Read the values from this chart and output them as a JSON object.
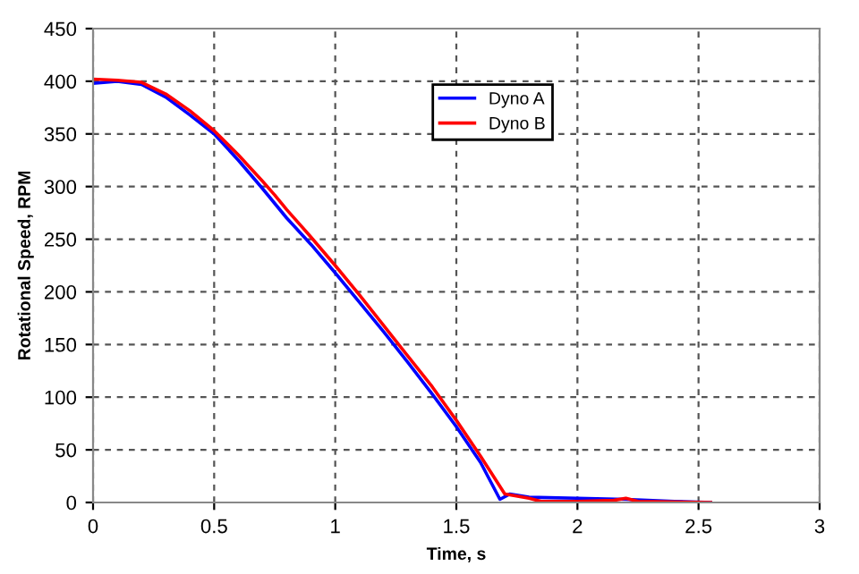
{
  "chart_data": {
    "type": "line",
    "xlabel": "Time, s",
    "ylabel": "Rotational Speed, RPM",
    "xlim": [
      0,
      3
    ],
    "xticks": [
      0,
      0.5,
      1,
      1.5,
      2,
      2.5,
      3
    ],
    "ylim": [
      0,
      450
    ],
    "yticks": [
      0,
      50,
      100,
      150,
      200,
      250,
      300,
      350,
      400,
      450
    ],
    "grid": true,
    "legend": "top",
    "marker": "none",
    "line_style": "solid",
    "series": [
      {
        "name": "Dyno A",
        "color": "#0000ff",
        "x": [
          0,
          0.1,
          0.2,
          0.3,
          0.4,
          0.5,
          0.6,
          0.7,
          0.8,
          0.9,
          1.0,
          1.1,
          1.2,
          1.3,
          1.4,
          1.5,
          1.6,
          1.68,
          1.72,
          1.8,
          2.0,
          2.2,
          2.4,
          2.55
        ],
        "values": [
          398,
          400,
          397,
          385,
          368,
          350,
          325,
          298,
          270,
          245,
          218,
          190,
          162,
          133,
          103,
          72,
          38,
          3,
          8,
          5,
          4,
          3,
          1,
          0
        ]
      },
      {
        "name": "Dyno B",
        "color": "#ff0000",
        "x": [
          0,
          0.1,
          0.2,
          0.3,
          0.4,
          0.5,
          0.6,
          0.7,
          0.75,
          0.8,
          0.9,
          1.0,
          1.1,
          1.2,
          1.3,
          1.4,
          1.5,
          1.6,
          1.7,
          1.8,
          1.85,
          2.0,
          2.15,
          2.2,
          2.25,
          2.55
        ],
        "values": [
          402,
          401,
          399,
          388,
          372,
          353,
          330,
          305,
          292,
          278,
          252,
          225,
          197,
          168,
          139,
          110,
          78,
          44,
          8,
          4,
          1,
          1,
          2,
          4,
          1,
          0
        ]
      }
    ]
  }
}
